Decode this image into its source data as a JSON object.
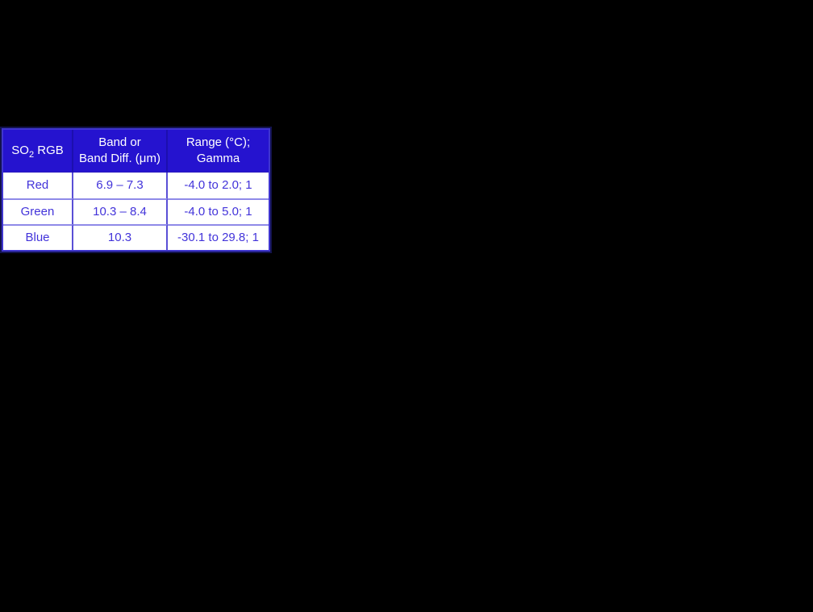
{
  "slide": {
    "background_color": "#000000"
  },
  "table": {
    "colors": {
      "header_bg": "#2513cf",
      "header_text": "#ffffff",
      "header_divider": "#1c0fae",
      "header_edge": "#2c1cbe",
      "body_bg": "#ffffff",
      "body_text": "#4233da",
      "body_col_divider": "#5a4fd6",
      "row_divider": "#8f8ae8",
      "outer_border": "#3f35cf",
      "outer_outline": "#13134e"
    },
    "header": {
      "col1_prefix": "SO",
      "col1_subscript": "2",
      "col1_suffix": " RGB",
      "col2_line1": "Band or",
      "col2_line2": "Band Diff. (μm)",
      "col3_line1": "Range (°C);",
      "col3_line2": "Gamma"
    },
    "rows": [
      {
        "color": "Red",
        "band": "6.9 – 7.3",
        "range": "-4.0 to 2.0; 1"
      },
      {
        "color": "Green",
        "band": "10.3 – 8.4",
        "range": "-4.0 to 5.0; 1"
      },
      {
        "color": "Blue",
        "band": "10.3",
        "range": "-30.1 to 29.8; 1"
      }
    ]
  },
  "chart_data": {
    "type": "table",
    "title": "SO2 RGB recipe table",
    "columns": [
      "SO2 RGB",
      "Band or Band Diff. (μm)",
      "Range (°C); Gamma"
    ],
    "rows": [
      [
        "Red",
        "6.9 – 7.3",
        "-4.0 to 2.0; 1"
      ],
      [
        "Green",
        "10.3 – 8.4",
        "-4.0 to 5.0; 1"
      ],
      [
        "Blue",
        "10.3",
        "-30.1 to 29.8; 1"
      ]
    ]
  }
}
